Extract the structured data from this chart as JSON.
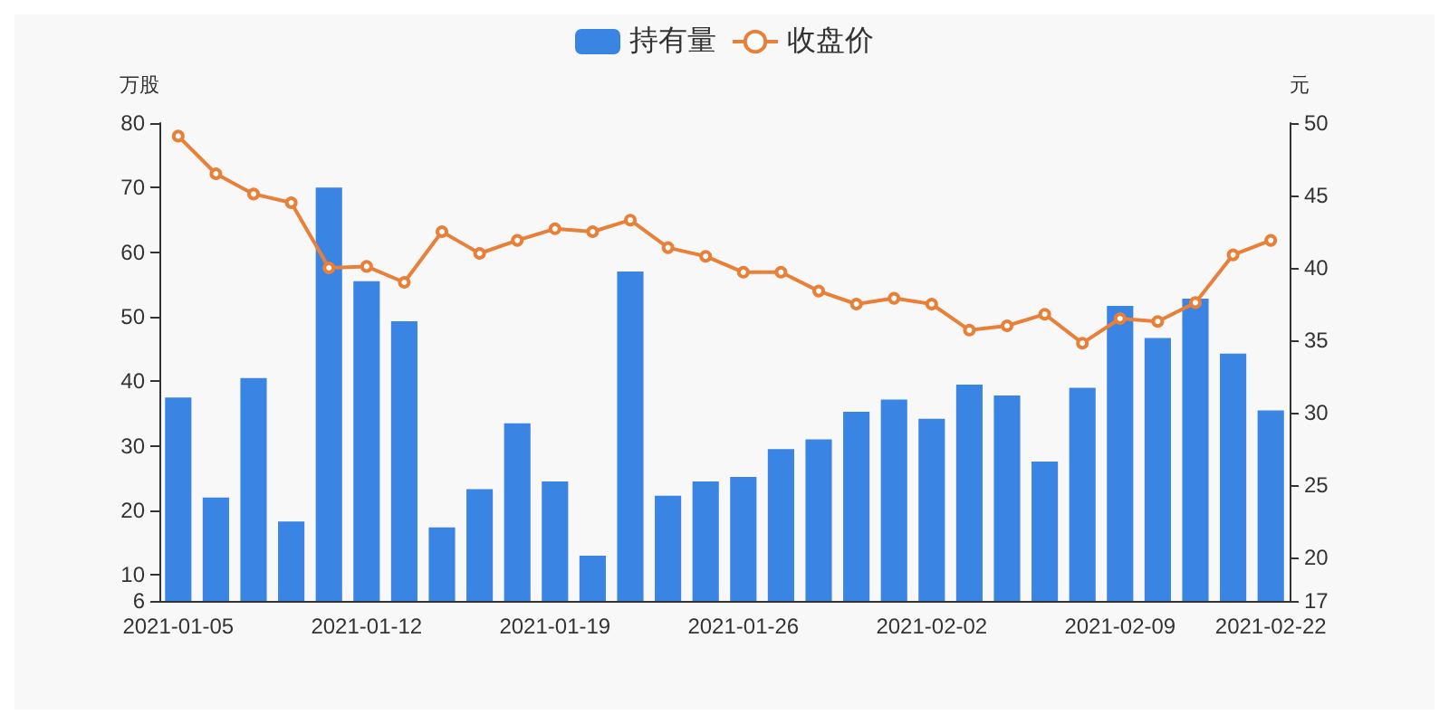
{
  "chart_data": {
    "type": "bar",
    "ylabel": "万股",
    "y2label": "元",
    "legend": "top",
    "categories": [
      "2021-01-05",
      null,
      null,
      null,
      null,
      "2021-01-12",
      null,
      null,
      null,
      null,
      "2021-01-19",
      null,
      null,
      null,
      null,
      "2021-01-26",
      null,
      null,
      null,
      null,
      "2021-02-02",
      null,
      null,
      null,
      null,
      "2021-02-09",
      null,
      null,
      null,
      "2021-02-22"
    ],
    "series": [
      {
        "name": "持有量",
        "color": "#3a84e3",
        "values": [
          37.5,
          22,
          40.5,
          18.3,
          70,
          55.5,
          49.3,
          17.4,
          23.3,
          33.5,
          24.5,
          13,
          57,
          22.3,
          24.5,
          25.2,
          29.5,
          31,
          35.3,
          37.2,
          34.2,
          39.5,
          37.8,
          27.6,
          39,
          51.7,
          46.7,
          52.8,
          44.3,
          35.5
        ]
      },
      {
        "name": "收盘价",
        "type": "line",
        "axis": "y2",
        "color": "#e8803a",
        "marker": "circle",
        "values": [
          49.1,
          46.5,
          45.1,
          44.5,
          40.0,
          40.1,
          39.0,
          42.5,
          41.0,
          41.9,
          42.7,
          42.5,
          43.3,
          41.4,
          40.8,
          39.7,
          39.7,
          38.4,
          37.5,
          37.9,
          37.5,
          35.7,
          36.0,
          36.8,
          34.8,
          36.5,
          36.3,
          37.6,
          40.9,
          41.9
        ]
      }
    ],
    "ylim": [
      6,
      80
    ],
    "yticks": [
      6,
      10,
      20,
      30,
      40,
      50,
      60,
      70,
      80
    ],
    "y2lim": [
      17,
      50
    ],
    "y2ticks": [
      17,
      20,
      25,
      30,
      35,
      40,
      45,
      50
    ],
    "grid": false
  }
}
